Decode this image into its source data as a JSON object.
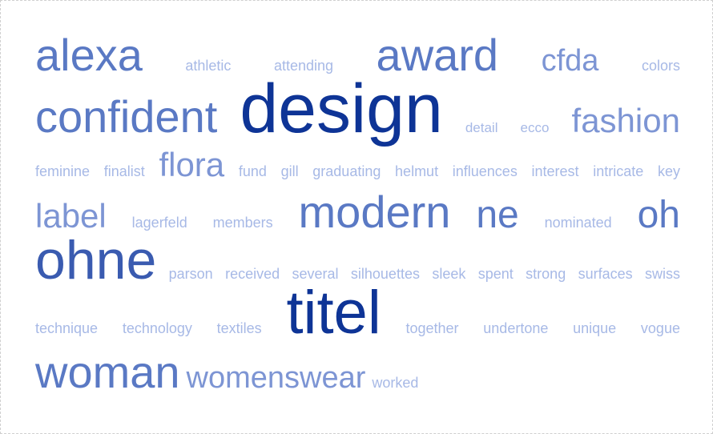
{
  "rows": [
    {
      "left": false,
      "words": [
        {
          "text": "alexa",
          "size": 56,
          "color": "#5a79c4"
        },
        {
          "text": "athletic",
          "size": 18,
          "color": "#a7b9e6"
        },
        {
          "text": "attending",
          "size": 18,
          "color": "#a7b9e6"
        },
        {
          "text": "award",
          "size": 56,
          "color": "#5a79c4"
        },
        {
          "text": "cfda",
          "size": 38,
          "color": "#7d95d4"
        },
        {
          "text": "colors",
          "size": 18,
          "color": "#a7b9e6"
        }
      ]
    },
    {
      "left": false,
      "words": [
        {
          "text": "confident",
          "size": 56,
          "color": "#5a79c4"
        },
        {
          "text": "design",
          "size": 86,
          "color": "#0e3496"
        },
        {
          "text": "detail",
          "size": 17,
          "color": "#a7b9e6"
        },
        {
          "text": "ecco",
          "size": 17,
          "color": "#a7b9e6"
        },
        {
          "text": "fashion",
          "size": 42,
          "color": "#7d95d4"
        }
      ]
    },
    {
      "left": false,
      "words": [
        {
          "text": "feminine",
          "size": 18,
          "color": "#a7b9e6"
        },
        {
          "text": "finalist",
          "size": 18,
          "color": "#a7b9e6"
        },
        {
          "text": "flora",
          "size": 42,
          "color": "#7d95d4"
        },
        {
          "text": "fund",
          "size": 18,
          "color": "#a7b9e6"
        },
        {
          "text": "gill",
          "size": 18,
          "color": "#a7b9e6"
        },
        {
          "text": "graduating",
          "size": 18,
          "color": "#a7b9e6"
        },
        {
          "text": "helmut",
          "size": 18,
          "color": "#a7b9e6"
        },
        {
          "text": "influences",
          "size": 18,
          "color": "#a7b9e6"
        },
        {
          "text": "interest",
          "size": 18,
          "color": "#a7b9e6"
        },
        {
          "text": "intricate",
          "size": 18,
          "color": "#a7b9e6"
        },
        {
          "text": "key",
          "size": 18,
          "color": "#a7b9e6"
        }
      ]
    },
    {
      "left": false,
      "words": [
        {
          "text": "label",
          "size": 42,
          "color": "#7d95d4"
        },
        {
          "text": "lagerfeld",
          "size": 18,
          "color": "#a7b9e6"
        },
        {
          "text": "members",
          "size": 18,
          "color": "#a7b9e6"
        },
        {
          "text": "modern",
          "size": 56,
          "color": "#5a79c4"
        },
        {
          "text": "ne",
          "size": 48,
          "color": "#5a79c4"
        },
        {
          "text": "nominated",
          "size": 18,
          "color": "#a7b9e6"
        },
        {
          "text": "oh",
          "size": 48,
          "color": "#5a79c4"
        }
      ]
    },
    {
      "left": false,
      "words": [
        {
          "text": "ohne",
          "size": 68,
          "color": "#3a5bb0"
        },
        {
          "text": "parson",
          "size": 18,
          "color": "#a7b9e6"
        },
        {
          "text": "received",
          "size": 18,
          "color": "#a7b9e6"
        },
        {
          "text": "several",
          "size": 18,
          "color": "#a7b9e6"
        },
        {
          "text": "silhouettes",
          "size": 18,
          "color": "#a7b9e6"
        },
        {
          "text": "sleek",
          "size": 18,
          "color": "#a7b9e6"
        },
        {
          "text": "spent",
          "size": 18,
          "color": "#a7b9e6"
        },
        {
          "text": "strong",
          "size": 18,
          "color": "#a7b9e6"
        },
        {
          "text": "surfaces",
          "size": 18,
          "color": "#a7b9e6"
        },
        {
          "text": "swiss",
          "size": 18,
          "color": "#a7b9e6"
        }
      ]
    },
    {
      "left": false,
      "words": [
        {
          "text": "technique",
          "size": 18,
          "color": "#a7b9e6"
        },
        {
          "text": "technology",
          "size": 18,
          "color": "#a7b9e6"
        },
        {
          "text": "textiles",
          "size": 18,
          "color": "#a7b9e6"
        },
        {
          "text": "titel",
          "size": 76,
          "color": "#0e3496"
        },
        {
          "text": "together",
          "size": 18,
          "color": "#a7b9e6"
        },
        {
          "text": "undertone",
          "size": 18,
          "color": "#a7b9e6"
        },
        {
          "text": "unique",
          "size": 18,
          "color": "#a7b9e6"
        },
        {
          "text": "vogue",
          "size": 18,
          "color": "#a7b9e6"
        }
      ]
    },
    {
      "left": true,
      "words": [
        {
          "text": "woman",
          "size": 56,
          "color": "#5a79c4"
        },
        {
          "text": "womenswear",
          "size": 38,
          "color": "#7d95d4"
        },
        {
          "text": "worked",
          "size": 18,
          "color": "#a7b9e6"
        }
      ]
    }
  ]
}
